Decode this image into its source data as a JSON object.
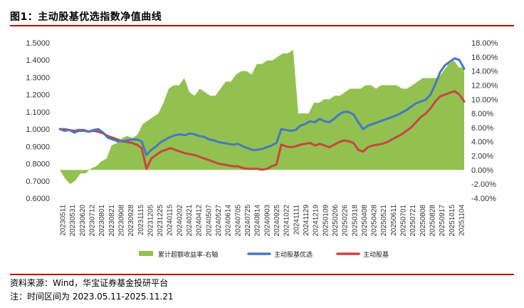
{
  "header": {
    "title": "图1：主动股基优选指数净值曲线"
  },
  "footer": {
    "source": "资料来源：Wind，华宝证券基金投研平台",
    "note": "注：时间区间为 2023.05.11-2025.11.21"
  },
  "colors": {
    "accent": "#c00000",
    "area": "#92c150",
    "selected_line": "#4877c2",
    "base_line": "#c94444"
  },
  "chart_data": {
    "type": "line",
    "title": "",
    "y_left": {
      "min": 0.6,
      "max": 1.5,
      "step": 0.1,
      "tick_labels": [
        "0.6000",
        "0.7000",
        "0.8000",
        "0.9000",
        "1.0000",
        "1.1000",
        "1.2000",
        "1.3000",
        "1.4000",
        "1.5000"
      ]
    },
    "y_right": {
      "min": -4,
      "max": 18,
      "step": 2,
      "tick_labels": [
        "-4.00%",
        "-2.00%",
        "0.00%",
        "2.00%",
        "4.00%",
        "6.00%",
        "8.00%",
        "10.00%",
        "12.00%",
        "14.00%",
        "16.00%",
        "18.00%"
      ]
    },
    "x_tick_labels": [
      "20230511",
      "20230531",
      "20230620",
      "20230712",
      "20230801",
      "20230821",
      "20230908",
      "20230928",
      "20231115",
      "20231205",
      "20231225",
      "20240115",
      "20240202",
      "20240321",
      "20240412",
      "20240507",
      "20240527",
      "20240614",
      "20240705",
      "20240725",
      "20240814",
      "20240903",
      "20240925",
      "20241022",
      "20241111",
      "20241129",
      "20241219",
      "20250109",
      "20250206",
      "20250226",
      "20250318",
      "20250408",
      "20250428",
      "20250521",
      "20250611",
      "20250701",
      "20250721",
      "20250808",
      "20250828",
      "20250917",
      "20251015",
      "20251104"
    ],
    "series": [
      {
        "name": "累计超额收益率-右轴",
        "axis": "right",
        "render": "area",
        "values": [
          0,
          -1.2,
          -2,
          -1.5,
          -0.5,
          -0.5,
          0.2,
          0.5,
          1.2,
          1.6,
          3.5,
          3.8,
          4.5,
          4.8,
          4.5,
          5,
          6.5,
          7,
          7.5,
          8,
          9.5,
          11.5,
          12,
          12,
          13,
          11,
          10.5,
          11.5,
          11,
          10.5,
          10.5,
          11.5,
          12.5,
          12.5,
          13.5,
          14,
          14,
          13.5,
          15,
          15,
          15.5,
          15.5,
          16,
          16.5,
          16.5,
          17,
          8,
          8,
          8,
          9.5,
          9.5,
          10,
          10,
          10.5,
          10.5,
          11,
          11.5,
          11.5,
          11.5,
          12,
          12,
          11.5,
          12,
          12,
          12,
          12,
          11.5,
          11.5,
          12,
          12.5,
          13,
          13,
          13,
          13,
          14,
          15,
          15.5,
          14.5,
          14.5
        ]
      },
      {
        "name": "主动股基优选",
        "axis": "left",
        "render": "line",
        "values": [
          1,
          0.99,
          0.995,
          0.98,
          0.99,
          0.99,
          0.985,
          0.995,
          1,
          0.98,
          0.95,
          0.94,
          0.93,
          0.93,
          0.935,
          0.94,
          0.94,
          0.93,
          0.85,
          0.88,
          0.9,
          0.925,
          0.94,
          0.955,
          0.965,
          0.97,
          0.965,
          0.975,
          0.97,
          0.96,
          0.955,
          0.94,
          0.935,
          0.925,
          0.92,
          0.915,
          0.91,
          0.915,
          0.9,
          0.89,
          0.88,
          0.88,
          0.885,
          0.895,
          0.905,
          0.92,
          1,
          0.995,
          0.99,
          0.995,
          1.02,
          1.03,
          1.045,
          1.04,
          1.06,
          1.045,
          1.04,
          1.06,
          1.085,
          1.1,
          1.1,
          1.085,
          1.04,
          1,
          1.02,
          1.03,
          1.04,
          1.05,
          1.06,
          1.07,
          1.08,
          1.095,
          1.11,
          1.13,
          1.15,
          1.16,
          1.17,
          1.2,
          1.26,
          1.33,
          1.37,
          1.39,
          1.41,
          1.4,
          1.35
        ]
      },
      {
        "name": "主动股基",
        "axis": "left",
        "render": "line",
        "values": [
          1,
          1,
          0.995,
          0.99,
          0.995,
          0.995,
          0.985,
          0.99,
          0.985,
          0.975,
          0.96,
          0.95,
          0.94,
          0.93,
          0.925,
          0.92,
          0.91,
          0.89,
          0.77,
          0.83,
          0.85,
          0.87,
          0.88,
          0.89,
          0.88,
          0.87,
          0.86,
          0.855,
          0.85,
          0.84,
          0.83,
          0.82,
          0.81,
          0.8,
          0.795,
          0.79,
          0.785,
          0.785,
          0.775,
          0.77,
          0.77,
          0.77,
          0.765,
          0.77,
          0.785,
          0.795,
          0.91,
          0.9,
          0.895,
          0.9,
          0.91,
          0.915,
          0.92,
          0.905,
          0.915,
          0.905,
          0.895,
          0.91,
          0.925,
          0.935,
          0.93,
          0.92,
          0.88,
          0.87,
          0.895,
          0.905,
          0.91,
          0.915,
          0.925,
          0.94,
          0.955,
          0.97,
          0.99,
          1.01,
          1.04,
          1.07,
          1.09,
          1.12,
          1.16,
          1.19,
          1.2,
          1.21,
          1.22,
          1.2,
          1.16
        ]
      }
    ],
    "legend": {
      "position": "bottom",
      "entries": [
        "累计超额收益率-右轴",
        "主动股基优选",
        "主动股基"
      ]
    },
    "grid": false
  }
}
